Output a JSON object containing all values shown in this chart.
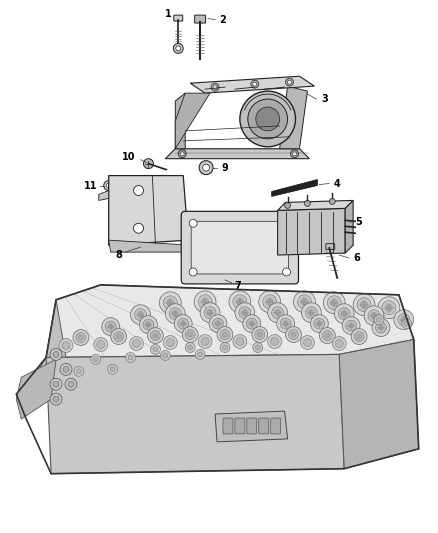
{
  "bg_color": "#ffffff",
  "line_color": "#555555",
  "dark_line": "#222222",
  "fig_width": 4.38,
  "fig_height": 5.33,
  "dpi": 100
}
